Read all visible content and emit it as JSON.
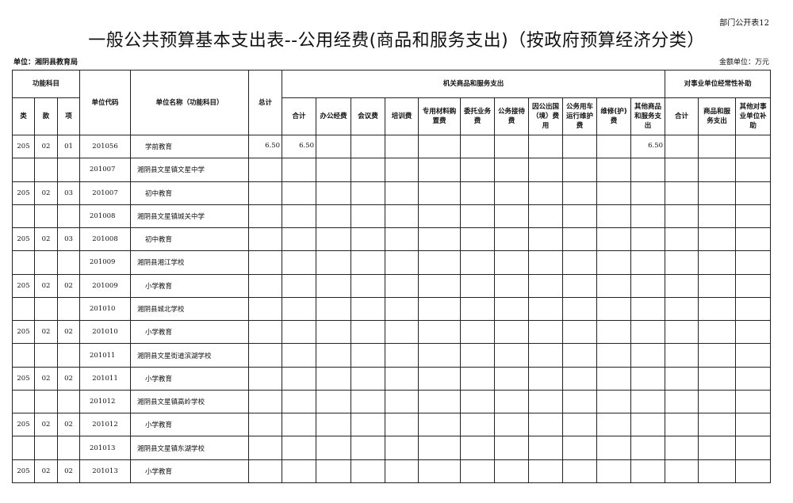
{
  "form_number": "部门公开表12",
  "title": "一般公共预算基本支出表--公用经费(商品和服务支出)（按政府预算经济分类）",
  "unit_label": "单位：湘阴县教育局",
  "money_unit": "金额单位：万元",
  "header": {
    "func_subject": "功能科目",
    "lei": "类",
    "kuan": "款",
    "xiang": "项",
    "unit_code": "单位代码",
    "unit_name": "单位名称（功能科目）",
    "total": "总计",
    "group_org": "机关商品和服务支出",
    "group_sub": "对事业单位经常性补助",
    "org_cols": [
      "合计",
      "办公经费",
      "会议费",
      "培训费",
      "专用材料购置费",
      "委托业务费",
      "公务接待费",
      "因公出国（境）费用",
      "公务用车运行维护费",
      "维修(护)费",
      "其他商品和服务支出"
    ],
    "sub_cols": [
      "合计",
      "商品和服务支出",
      "其他对事业单位补助"
    ]
  },
  "rows": [
    {
      "type": "fn",
      "lei": "205",
      "kuan": "02",
      "xiang": "01",
      "code": "201056",
      "name": "学前教育",
      "amounts": [
        "6.50",
        "6.50",
        "",
        "",
        "",
        "",
        "",
        "",
        "",
        "",
        "",
        "6.50",
        "",
        "",
        ""
      ]
    },
    {
      "type": "unit",
      "lei": "",
      "kuan": "",
      "xiang": "",
      "code": "201007",
      "name": "湘阴县文星镇文星中学",
      "amounts": [
        "",
        "",
        "",
        "",
        "",
        "",
        "",
        "",
        "",
        "",
        "",
        "",
        "",
        "",
        ""
      ]
    },
    {
      "type": "fn",
      "lei": "205",
      "kuan": "02",
      "xiang": "03",
      "code": "201007",
      "name": "初中教育",
      "amounts": [
        "",
        "",
        "",
        "",
        "",
        "",
        "",
        "",
        "",
        "",
        "",
        "",
        "",
        "",
        ""
      ]
    },
    {
      "type": "unit",
      "lei": "",
      "kuan": "",
      "xiang": "",
      "code": "201008",
      "name": "湘阴县文星镇城关中学",
      "amounts": [
        "",
        "",
        "",
        "",
        "",
        "",
        "",
        "",
        "",
        "",
        "",
        "",
        "",
        "",
        ""
      ]
    },
    {
      "type": "fn",
      "lei": "205",
      "kuan": "02",
      "xiang": "03",
      "code": "201008",
      "name": "初中教育",
      "amounts": [
        "",
        "",
        "",
        "",
        "",
        "",
        "",
        "",
        "",
        "",
        "",
        "",
        "",
        "",
        ""
      ]
    },
    {
      "type": "unit",
      "lei": "",
      "kuan": "",
      "xiang": "",
      "code": "201009",
      "name": "湘阴县湘江学校",
      "amounts": [
        "",
        "",
        "",
        "",
        "",
        "",
        "",
        "",
        "",
        "",
        "",
        "",
        "",
        "",
        ""
      ]
    },
    {
      "type": "fn",
      "lei": "205",
      "kuan": "02",
      "xiang": "02",
      "code": "201009",
      "name": "小学教育",
      "amounts": [
        "",
        "",
        "",
        "",
        "",
        "",
        "",
        "",
        "",
        "",
        "",
        "",
        "",
        "",
        ""
      ]
    },
    {
      "type": "unit",
      "lei": "",
      "kuan": "",
      "xiang": "",
      "code": "201010",
      "name": "湘阴县城北学校",
      "amounts": [
        "",
        "",
        "",
        "",
        "",
        "",
        "",
        "",
        "",
        "",
        "",
        "",
        "",
        "",
        ""
      ]
    },
    {
      "type": "fn",
      "lei": "205",
      "kuan": "02",
      "xiang": "02",
      "code": "201010",
      "name": "小学教育",
      "amounts": [
        "",
        "",
        "",
        "",
        "",
        "",
        "",
        "",
        "",
        "",
        "",
        "",
        "",
        "",
        ""
      ]
    },
    {
      "type": "unit",
      "lei": "",
      "kuan": "",
      "xiang": "",
      "code": "201011",
      "name": "湘阴县文星街道滨湖学校",
      "amounts": [
        "",
        "",
        "",
        "",
        "",
        "",
        "",
        "",
        "",
        "",
        "",
        "",
        "",
        "",
        ""
      ]
    },
    {
      "type": "fn",
      "lei": "205",
      "kuan": "02",
      "xiang": "02",
      "code": "201011",
      "name": "小学教育",
      "amounts": [
        "",
        "",
        "",
        "",
        "",
        "",
        "",
        "",
        "",
        "",
        "",
        "",
        "",
        "",
        ""
      ]
    },
    {
      "type": "unit",
      "lei": "",
      "kuan": "",
      "xiang": "",
      "code": "201012",
      "name": "湘阴县文星镇高岭学校",
      "amounts": [
        "",
        "",
        "",
        "",
        "",
        "",
        "",
        "",
        "",
        "",
        "",
        "",
        "",
        "",
        ""
      ]
    },
    {
      "type": "fn",
      "lei": "205",
      "kuan": "02",
      "xiang": "02",
      "code": "201012",
      "name": "小学教育",
      "amounts": [
        "",
        "",
        "",
        "",
        "",
        "",
        "",
        "",
        "",
        "",
        "",
        "",
        "",
        "",
        ""
      ]
    },
    {
      "type": "unit",
      "lei": "",
      "kuan": "",
      "xiang": "",
      "code": "201013",
      "name": "湘阴县文星镇东湖学校",
      "amounts": [
        "",
        "",
        "",
        "",
        "",
        "",
        "",
        "",
        "",
        "",
        "",
        "",
        "",
        "",
        ""
      ]
    },
    {
      "type": "fn",
      "lei": "205",
      "kuan": "02",
      "xiang": "02",
      "code": "201013",
      "name": "小学教育",
      "amounts": [
        "",
        "",
        "",
        "",
        "",
        "",
        "",
        "",
        "",
        "",
        "",
        "",
        "",
        "",
        ""
      ]
    }
  ]
}
